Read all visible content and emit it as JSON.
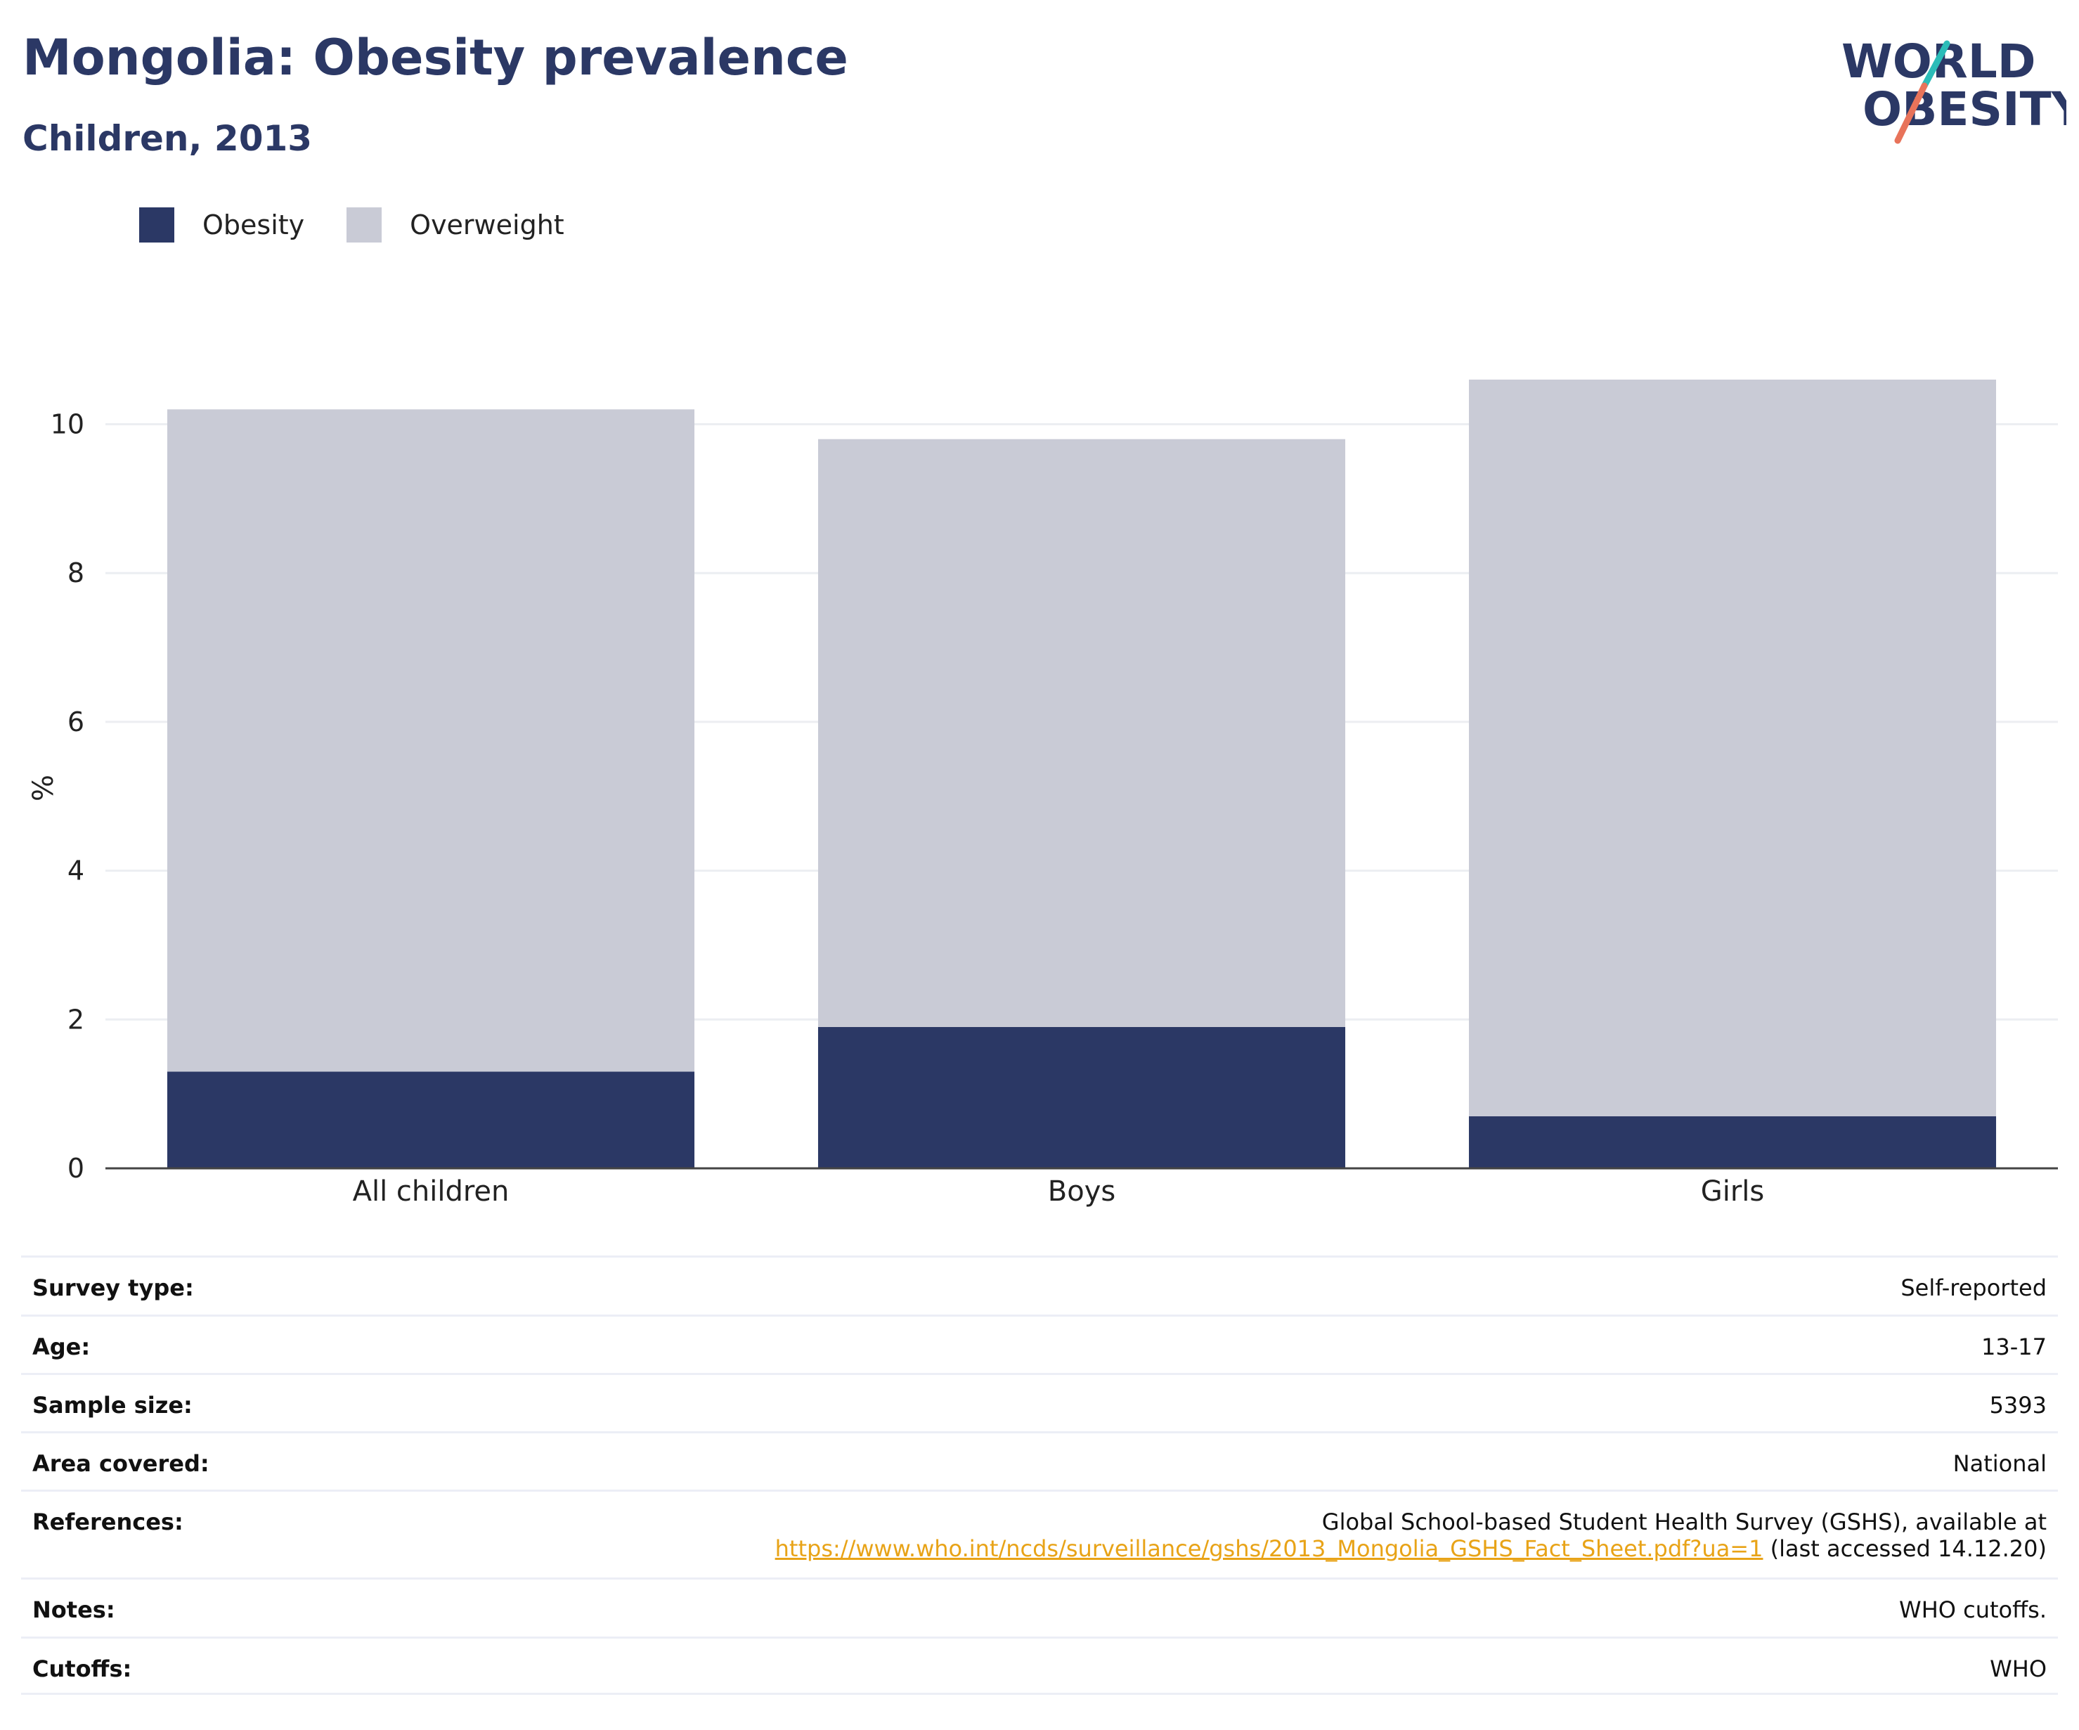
{
  "header": {
    "title": "Mongolia: Obesity prevalence",
    "subtitle": "Children, 2013",
    "logo_line1": "WORLD",
    "logo_line2": "OBESITY"
  },
  "colors": {
    "obesity": "#2b3865",
    "overweight": "#c9cbd6",
    "accent_teal": "#2bbcb8",
    "accent_coral": "#e8735a",
    "link": "#e8a317"
  },
  "chart_data": {
    "type": "bar",
    "stacked": true,
    "categories": [
      "All children",
      "Boys",
      "Girls"
    ],
    "series": [
      {
        "name": "Obesity",
        "values": [
          1.3,
          1.9,
          0.7
        ]
      },
      {
        "name": "Overweight",
        "values": [
          8.9,
          7.9,
          9.9
        ]
      }
    ],
    "ylabel": "%",
    "ylim": [
      0,
      10.6
    ],
    "yticks": [
      0,
      2,
      4,
      6,
      8,
      10
    ],
    "grid": true,
    "legend_position": "top-left"
  },
  "info": {
    "rows": [
      {
        "label": "Survey type:",
        "value": "Self-reported"
      },
      {
        "label": "Age:",
        "value": "13-17"
      },
      {
        "label": "Sample size:",
        "value": "5393"
      },
      {
        "label": "Area covered:",
        "value": "National"
      },
      {
        "label": "References:",
        "value": "Global School-based Student Health Survey (GSHS), available at",
        "link": "https://www.who.int/ncds/surveillance/gshs/2013_Mongolia_GSHS_Fact_Sheet.pdf?ua=1",
        "suffix": "(last accessed 14.12.20)"
      },
      {
        "label": "Notes:",
        "value": "WHO cutoffs."
      },
      {
        "label": "Cutoffs:",
        "value": "WHO"
      }
    ]
  }
}
